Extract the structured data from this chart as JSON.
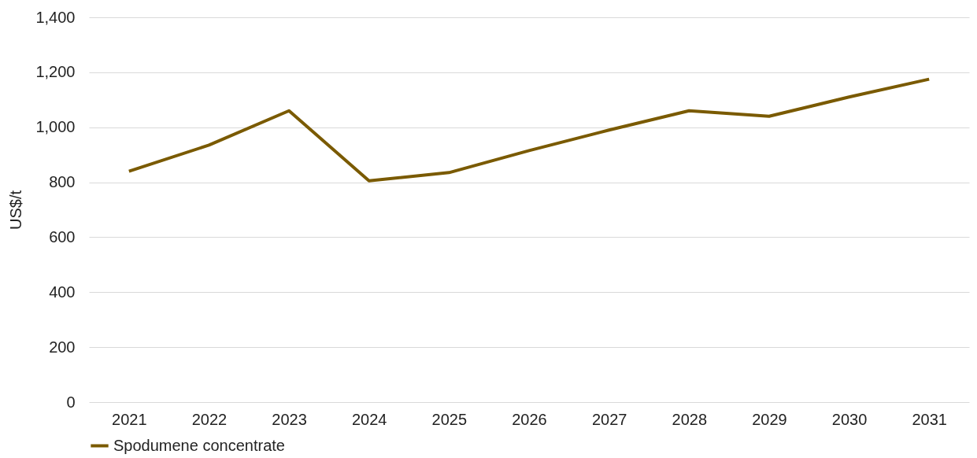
{
  "chart_data": {
    "type": "line",
    "ylabel": "US$/t",
    "categories": [
      "2021",
      "2022",
      "2023",
      "2024",
      "2025",
      "2026",
      "2027",
      "2028",
      "2029",
      "2030",
      "2031"
    ],
    "series": [
      {
        "name": "Spodumene concentrate",
        "color": "#7a5a00",
        "values": [
          840,
          935,
          1060,
          805,
          835,
          915,
          990,
          1060,
          1040,
          1110,
          1175
        ]
      }
    ],
    "ylim": [
      0,
      1400
    ],
    "yticks": [
      0,
      200,
      400,
      600,
      800,
      {
        "value": 1000,
        "label": "1,000"
      },
      {
        "value": 1200,
        "label": "1,200"
      },
      {
        "value": 1400,
        "label": "1,400"
      }
    ],
    "grid": "y",
    "legend": "bottom",
    "marker": "none",
    "line_style": "solid"
  }
}
